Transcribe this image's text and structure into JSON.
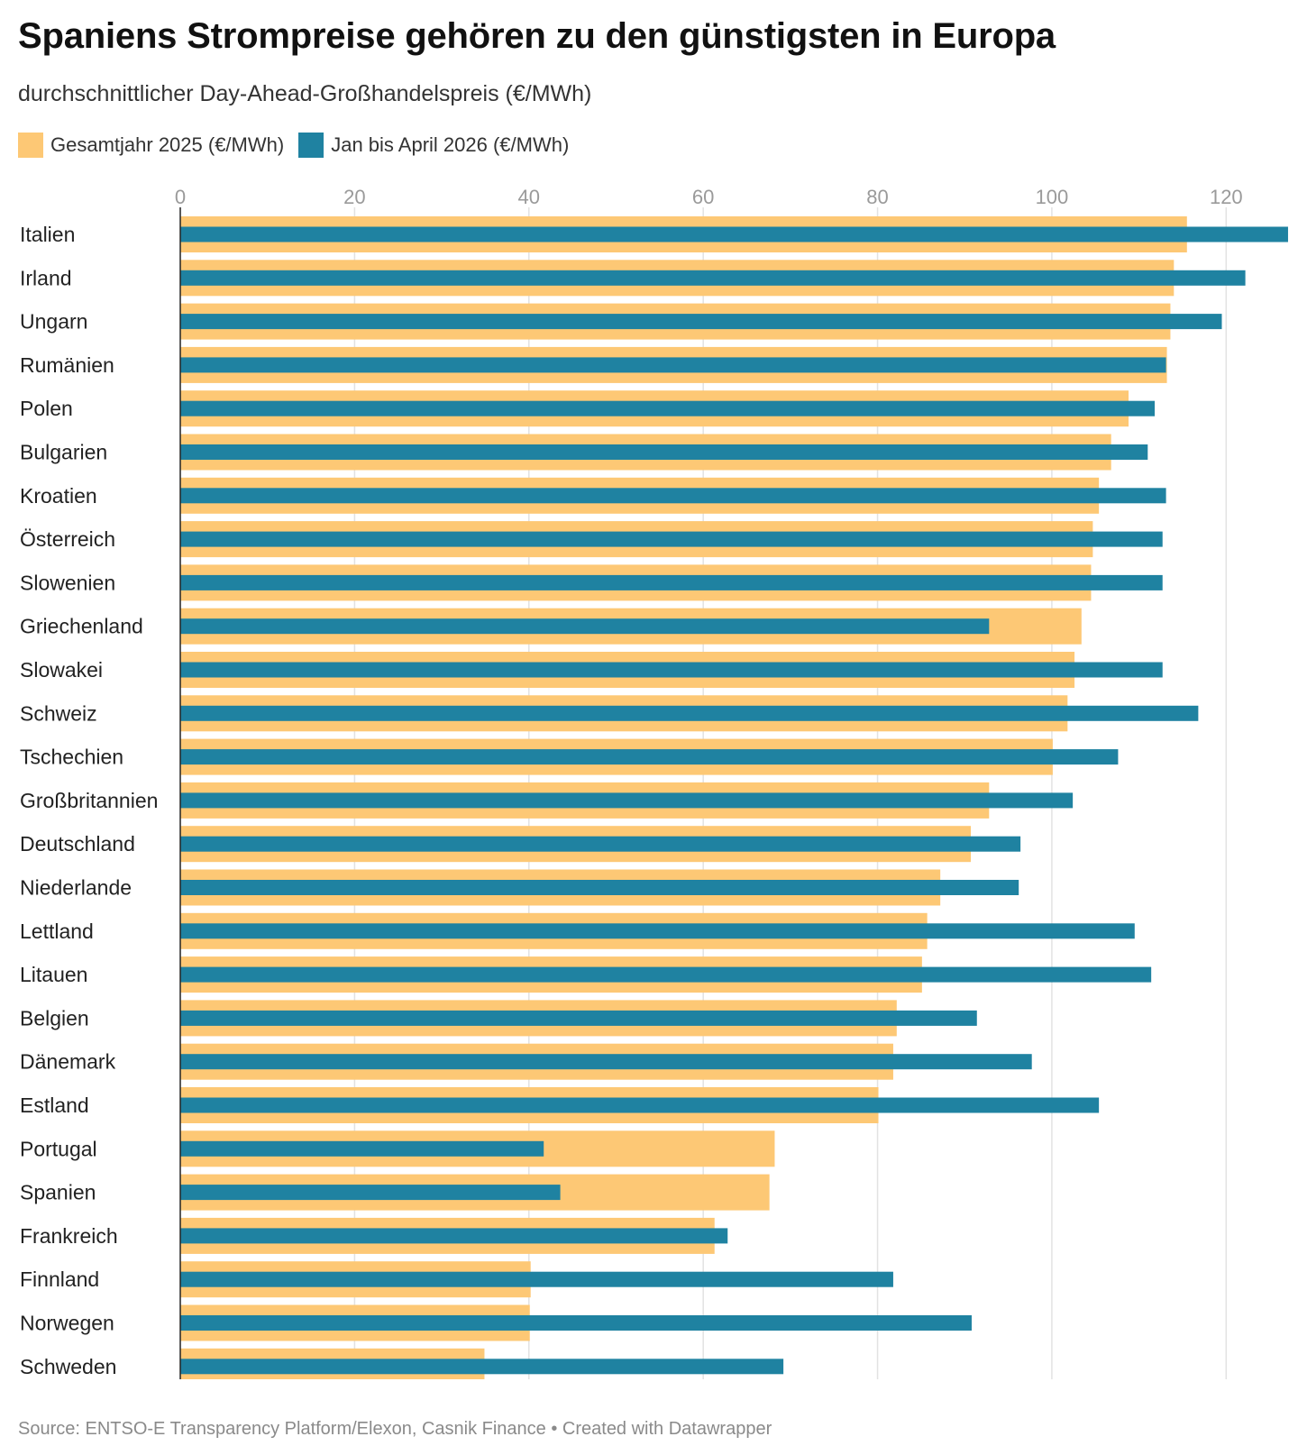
{
  "header": {
    "title": "Spaniens Strompreise gehören zu den günstigsten in Europa",
    "subtitle": "durchschnittlicher Day-Ahead-Großhandelspreis (€/MWh)"
  },
  "legend": {
    "items": [
      {
        "label": "Gesamtjahr 2025 (€/MWh)",
        "color": "#fdc875"
      },
      {
        "label": "Jan bis April 2026 (€/MWh)",
        "color": "#1f82a1"
      }
    ]
  },
  "footer": {
    "source": "Source: ENTSO-E Transparency Platform/Elexon, Casnik Finance • Created with Datawrapper"
  },
  "chart_data": {
    "type": "bar",
    "orientation": "horizontal",
    "xlim": [
      0,
      127
    ],
    "xticks": [
      0,
      20,
      40,
      60,
      80,
      100,
      120
    ],
    "grid": true,
    "legend_position": "top-left",
    "categories": [
      "Italien",
      "Irland",
      "Ungarn",
      "Rumänien",
      "Polen",
      "Bulgarien",
      "Kroatien",
      "Österreich",
      "Slowenien",
      "Griechenland",
      "Slowakei",
      "Schweiz",
      "Tschechien",
      "Großbritannien",
      "Deutschland",
      "Niederlande",
      "Lettland",
      "Litauen",
      "Belgien",
      "Dänemark",
      "Estland",
      "Portugal",
      "Spanien",
      "Frankreich",
      "Finnland",
      "Norwegen",
      "Schweden"
    ],
    "series": [
      {
        "name": "Gesamtjahr 2025 (€/MWh)",
        "color": "#fdc875",
        "values": [
          115.5,
          114,
          113.6,
          113.2,
          108.8,
          106.8,
          105.4,
          104.7,
          104.5,
          103.4,
          102.6,
          101.8,
          100.1,
          92.8,
          90.7,
          87.2,
          85.7,
          85.1,
          82.2,
          81.8,
          80.1,
          68.2,
          67.6,
          61.3,
          40.2,
          40.1,
          34.9
        ]
      },
      {
        "name": "Jan bis April 2026 (€/MWh)",
        "color": "#1f82a1",
        "values": [
          127.1,
          122.2,
          119.5,
          113.1,
          111.8,
          111,
          113.1,
          112.7,
          112.7,
          92.8,
          112.7,
          116.8,
          107.6,
          102.4,
          96.4,
          96.2,
          109.5,
          111.4,
          91.4,
          97.7,
          105.4,
          41.7,
          43.6,
          62.8,
          81.8,
          90.8,
          69.2
        ]
      }
    ]
  }
}
